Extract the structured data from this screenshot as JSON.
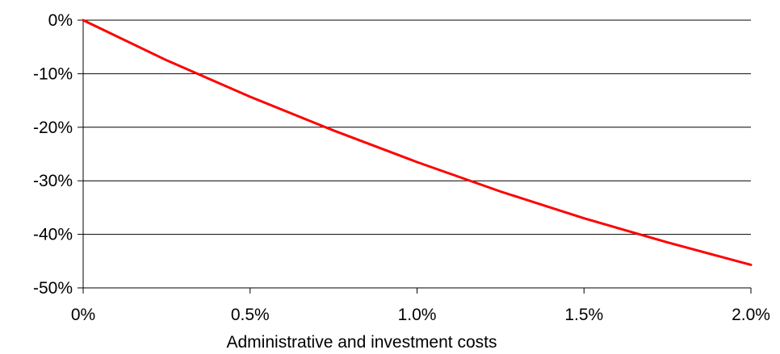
{
  "chart_data": {
    "type": "line",
    "title": "",
    "xlabel": "Administrative and investment costs",
    "ylabel": "",
    "x_ticks": [
      0,
      0.5,
      1.0,
      1.5,
      2.0
    ],
    "x_tick_labels": [
      "0%",
      "0.5%",
      "1.0%",
      "1.5%",
      "2.0%"
    ],
    "y_ticks": [
      0,
      -10,
      -20,
      -30,
      -40,
      -50
    ],
    "y_tick_labels": [
      "0%",
      "-10%",
      "-20%",
      "-30%",
      "-40%",
      "-50%"
    ],
    "xlim": [
      0,
      2.0
    ],
    "ylim": [
      -50,
      0
    ],
    "grid": "horizontal",
    "legend": "none",
    "series": [
      {
        "color": "#ff0000",
        "x": [
          0,
          0.25,
          0.5,
          0.75,
          1.0,
          1.25,
          1.5,
          1.75,
          2.0
        ],
        "y": [
          0,
          -7.5,
          -14.3,
          -20.6,
          -26.5,
          -32.0,
          -37.0,
          -41.5,
          -45.7
        ]
      }
    ]
  }
}
